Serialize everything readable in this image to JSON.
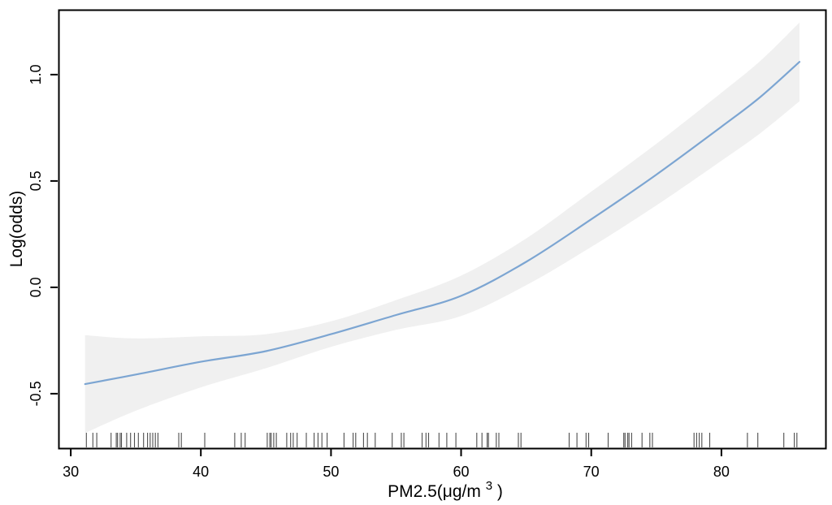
{
  "chart_data": {
    "type": "line",
    "subtype": "gam-smooth-with-confidence-band-and-rug",
    "title": "",
    "xlabel_prefix": "PM2.5(μg/m",
    "xlabel_sup": "3",
    "xlabel_suffix": ")",
    "ylabel": "Log(odds)",
    "xlim": [
      29.06,
      88.0
    ],
    "ylim": [
      -0.756,
      1.305
    ],
    "grid": "off",
    "legend": "none",
    "frame_color": "#000000",
    "x_ticks": [
      {
        "v": 30,
        "label": "30"
      },
      {
        "v": 40,
        "label": "40"
      },
      {
        "v": 50,
        "label": "50"
      },
      {
        "v": 60,
        "label": "60"
      },
      {
        "v": 70,
        "label": "70"
      },
      {
        "v": 80,
        "label": "80"
      }
    ],
    "y_ticks": [
      {
        "v": -0.5,
        "label": "-0.5"
      },
      {
        "v": 0.0,
        "label": "0.0"
      },
      {
        "v": 0.5,
        "label": "0.5"
      },
      {
        "v": 1.0,
        "label": "1.0"
      }
    ],
    "series": [
      {
        "name": "smooth-fit",
        "color": "#7CA5D2",
        "width": 2.2,
        "x": [
          31.1,
          35,
          40,
          45,
          50,
          55,
          60,
          65,
          70,
          75,
          80,
          83,
          86
        ],
        "y": [
          -0.455,
          -0.41,
          -0.35,
          -0.3,
          -0.22,
          -0.13,
          -0.04,
          0.12,
          0.32,
          0.53,
          0.755,
          0.895,
          1.06
        ]
      }
    ],
    "confidence_band": {
      "color": "#F0F0F0",
      "x": [
        31.1,
        35,
        40,
        45,
        50,
        55,
        60,
        65,
        70,
        75,
        80,
        83,
        86
      ],
      "upper": [
        -0.225,
        -0.24,
        -0.23,
        -0.22,
        -0.16,
        -0.06,
        0.055,
        0.23,
        0.45,
        0.675,
        0.915,
        1.065,
        1.245
      ],
      "lower": [
        -0.685,
        -0.58,
        -0.47,
        -0.38,
        -0.28,
        -0.2,
        -0.135,
        0.01,
        0.19,
        0.385,
        0.595,
        0.725,
        0.875
      ]
    },
    "rug": {
      "color": "#222222",
      "values": [
        31.2,
        31.7,
        32.0,
        33.1,
        33.5,
        33.6,
        33.8,
        33.9,
        34.3,
        34.6,
        34.9,
        35.2,
        35.6,
        35.9,
        36.1,
        36.3,
        36.5,
        36.7,
        38.3,
        38.5,
        40.3,
        42.6,
        43.1,
        43.4,
        45.1,
        45.3,
        45.4,
        45.6,
        45.8,
        46.6,
        46.9,
        47.1,
        47.4,
        48.1,
        48.7,
        49.0,
        49.3,
        49.7,
        51.0,
        51.7,
        51.9,
        52.5,
        52.8,
        53.4,
        54.7,
        55.4,
        55.6,
        57.0,
        57.3,
        57.5,
        58.3,
        58.9,
        59.6,
        61.2,
        61.6,
        62.0,
        62.1,
        62.7,
        62.9,
        64.4,
        64.6,
        68.3,
        68.9,
        69.6,
        69.8,
        71.3,
        72.5,
        72.6,
        72.8,
        72.9,
        73.1,
        73.9,
        74.5,
        74.7,
        77.9,
        78.1,
        78.3,
        78.5,
        79.1,
        82.0,
        82.8,
        84.8,
        85.6,
        85.8
      ]
    }
  }
}
